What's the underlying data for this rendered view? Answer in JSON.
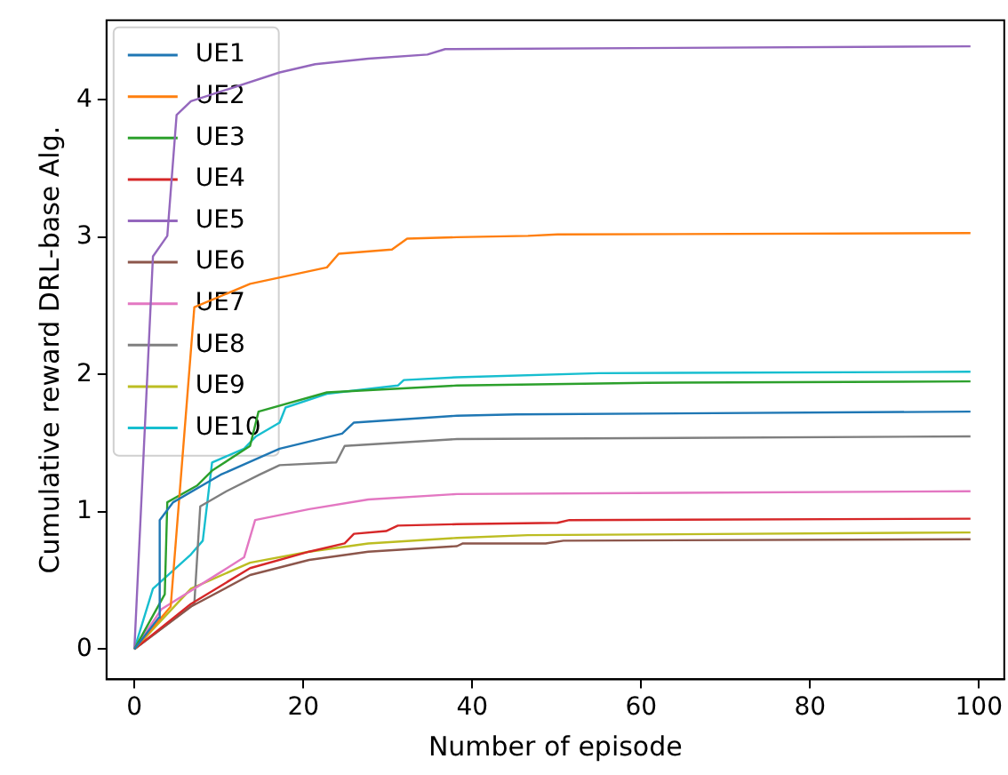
{
  "chart_data": {
    "type": "line",
    "xlabel": "Number of episode",
    "ylabel": "Cumulative reward DRL-base Alg.",
    "xlim": [
      -3.3,
      103
    ],
    "ylim": [
      -0.22,
      4.58
    ],
    "xticks": [
      0,
      20,
      40,
      60,
      80,
      100
    ],
    "yticks": [
      0,
      1,
      2,
      3,
      4
    ],
    "grid": false,
    "legend": "top left",
    "marker": "none",
    "line_style": "solid",
    "series": [
      {
        "name": "UE1",
        "color": "#1f77b4",
        "x": [
          0,
          2.9,
          3,
          4.6,
          10.2,
          17.2,
          24.6,
          26,
          38.2,
          45.2,
          99
        ],
        "values": [
          0,
          0.23,
          0.94,
          1.07,
          1.27,
          1.46,
          1.57,
          1.65,
          1.7,
          1.71,
          1.73
        ]
      },
      {
        "name": "UE2",
        "color": "#ff7f0e",
        "x": [
          0,
          4.3,
          7.1,
          13.7,
          22.8,
          24.2,
          30.5,
          32.3,
          38.2,
          46.6,
          50.1,
          99
        ],
        "values": [
          0,
          0.31,
          2.49,
          2.66,
          2.78,
          2.88,
          2.91,
          2.99,
          3,
          3.01,
          3.02,
          3.03
        ]
      },
      {
        "name": "UE3",
        "color": "#2ca02c",
        "x": [
          0,
          3.6,
          3.9,
          7.4,
          9.2,
          13.7,
          14.7,
          22.8,
          38.2,
          60.6,
          99
        ],
        "values": [
          0,
          0.4,
          1.07,
          1.19,
          1.3,
          1.48,
          1.73,
          1.87,
          1.92,
          1.94,
          1.95
        ]
      },
      {
        "name": "UE4",
        "color": "#d62728",
        "x": [
          0,
          6.7,
          13.7,
          20.7,
          24.9,
          26,
          29.8,
          31.2,
          38.2,
          50.1,
          51.5,
          99
        ],
        "values": [
          0,
          0.33,
          0.59,
          0.71,
          0.77,
          0.84,
          0.86,
          0.9,
          0.91,
          0.92,
          0.94,
          0.95
        ]
      },
      {
        "name": "UE5",
        "color": "#9467bd",
        "x": [
          0,
          2.2,
          3.9,
          5,
          6.7,
          17.2,
          21.4,
          27.7,
          34.7,
          36.8,
          99
        ],
        "values": [
          0,
          2.86,
          3.01,
          3.89,
          3.99,
          4.2,
          4.26,
          4.3,
          4.33,
          4.37,
          4.39
        ]
      },
      {
        "name": "UE6",
        "color": "#8c564b",
        "x": [
          0,
          6.7,
          13.7,
          20.7,
          27.7,
          38.2,
          38.9,
          48.7,
          50.8,
          99
        ],
        "values": [
          0,
          0.31,
          0.54,
          0.65,
          0.71,
          0.75,
          0.77,
          0.77,
          0.79,
          0.8
        ]
      },
      {
        "name": "UE7",
        "color": "#e377c2",
        "x": [
          0,
          3.2,
          10.2,
          13,
          14.3,
          20.7,
          27.7,
          38.2,
          99
        ],
        "values": [
          0,
          0.29,
          0.56,
          0.67,
          0.94,
          1.02,
          1.09,
          1.13,
          1.15
        ]
      },
      {
        "name": "UE8",
        "color": "#7f7f7f",
        "x": [
          0,
          7.1,
          7.8,
          10.9,
          14.8,
          17.2,
          23.9,
          24.9,
          38.2,
          99
        ],
        "values": [
          0,
          0.33,
          1.04,
          1.15,
          1.27,
          1.34,
          1.36,
          1.48,
          1.53,
          1.55
        ]
      },
      {
        "name": "UE9",
        "color": "#bcbd22",
        "x": [
          0,
          6.7,
          13.7,
          20.7,
          27.7,
          38.2,
          46.6,
          99
        ],
        "values": [
          0,
          0.44,
          0.63,
          0.71,
          0.77,
          0.81,
          0.83,
          0.85
        ]
      },
      {
        "name": "UE10",
        "color": "#17becf",
        "x": [
          0,
          2.2,
          6.7,
          8.1,
          9.2,
          13,
          14.4,
          17.2,
          17.9,
          22.8,
          31.2,
          31.9,
          38.2,
          55,
          99
        ],
        "values": [
          0,
          0.44,
          0.69,
          0.79,
          1.36,
          1.46,
          1.55,
          1.65,
          1.76,
          1.86,
          1.92,
          1.96,
          1.98,
          2.01,
          2.02
        ]
      }
    ]
  }
}
